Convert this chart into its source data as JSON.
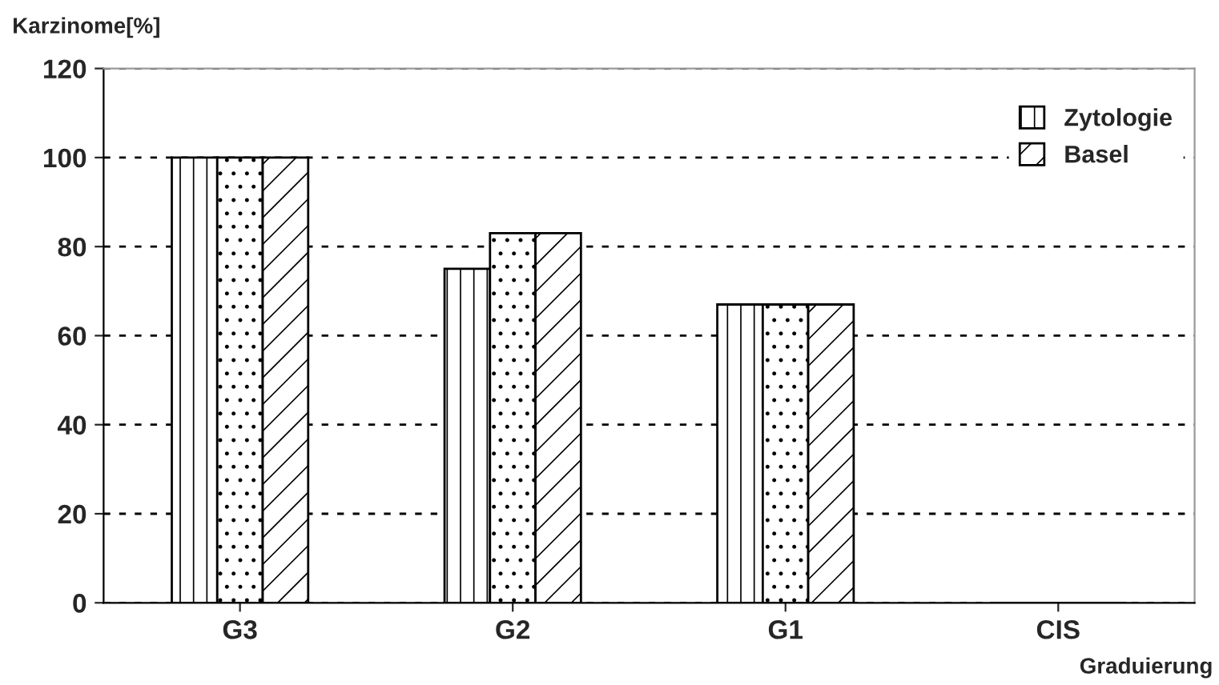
{
  "chart_data": {
    "type": "bar",
    "ylabel": "Karzinome[%]",
    "xlabel": "Graduierung",
    "categories": [
      "G3",
      "G2",
      "G1",
      "CIS"
    ],
    "series": [
      {
        "name": "Zytologie",
        "color": "#000000",
        "values": [
          100,
          75,
          67,
          0
        ]
      },
      {
        "color": "#000000",
        "values": [
          100,
          83,
          67,
          0
        ]
      },
      {
        "name": "Basel",
        "color": "#000000",
        "values": [
          100,
          83,
          67,
          0
        ]
      }
    ],
    "ylim": [
      0,
      120
    ],
    "yticks": [
      0,
      20,
      40,
      60,
      80,
      100,
      120
    ],
    "grid": "y",
    "legend": "top right"
  }
}
